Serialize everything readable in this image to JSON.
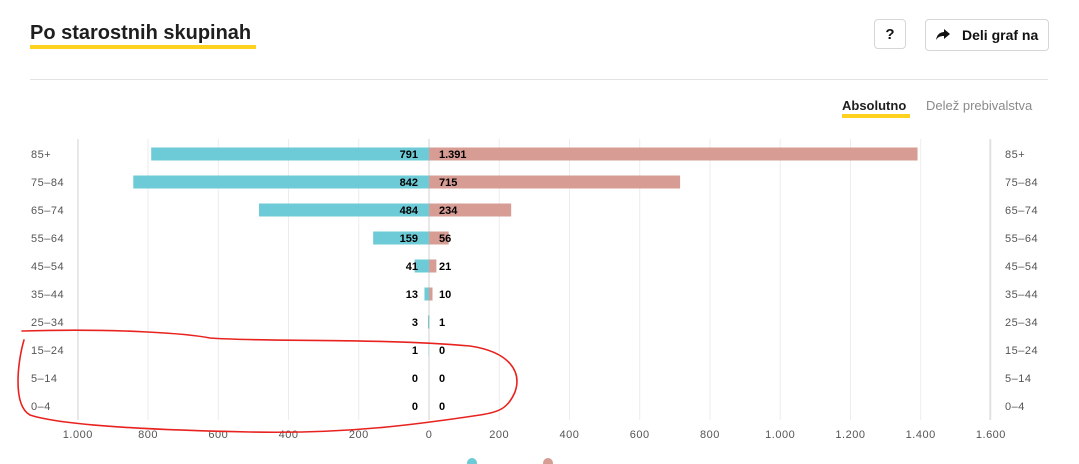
{
  "header": {
    "title": "Po starostnih skupinah",
    "help_label": "?",
    "share_label": "Deli graf na"
  },
  "toggle": {
    "active_label": "Absolutno",
    "inactive_label": "Delež prebivalstva"
  },
  "colors": {
    "male": "#6ccbd6",
    "female": "#d79c93",
    "accent": "#ffd21f",
    "annotation": "#e8231f"
  },
  "chart_data": {
    "type": "bar",
    "orientation": "horizontal-diverging",
    "categories": [
      "85+",
      "75–84",
      "65–74",
      "55–64",
      "45–54",
      "35–44",
      "25–34",
      "15–24",
      "5–14",
      "0–4"
    ],
    "series": [
      {
        "values": [
          791,
          842,
          484,
          159,
          41,
          13,
          3,
          1,
          0,
          0
        ],
        "labels": [
          "791",
          "842",
          "484",
          "159",
          "41",
          "13",
          "3",
          "1",
          "0",
          "0"
        ],
        "side": "left",
        "color": "#6ccbd6"
      },
      {
        "values": [
          1391,
          715,
          234,
          56,
          21,
          10,
          1,
          0,
          0,
          0
        ],
        "labels": [
          "1.391",
          "715",
          "234",
          "56",
          "21",
          "10",
          "1",
          "0",
          "0",
          "0"
        ],
        "side": "right",
        "color": "#d79c93"
      }
    ],
    "x_ticks_left": [
      "1.000",
      "800",
      "600",
      "400",
      "200"
    ],
    "x_ticks_right": [
      "0",
      "200",
      "400",
      "600",
      "800",
      "1.000",
      "1.200",
      "1.400",
      "1.600"
    ],
    "xlim_left": [
      0,
      1000
    ],
    "xlim_right": [
      0,
      1600
    ],
    "grid": true
  }
}
